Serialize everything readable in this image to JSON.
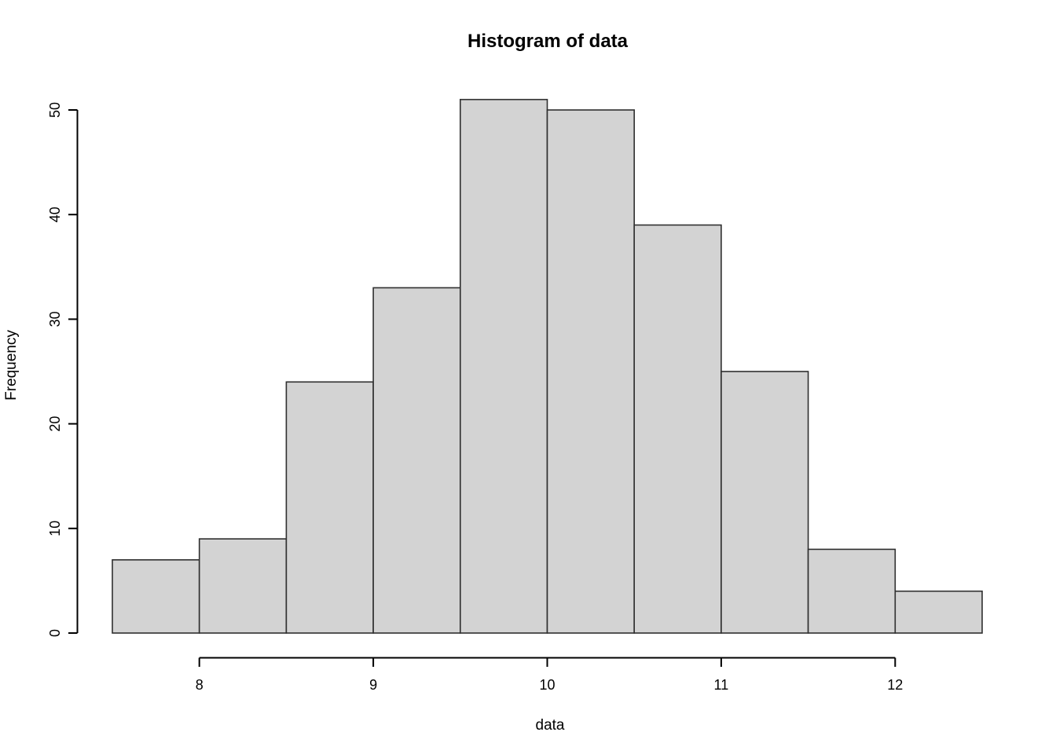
{
  "page": {
    "background": "#ffffff"
  },
  "chart_data": {
    "type": "bar",
    "subtype": "histogram",
    "title": "Histogram of data",
    "xlabel": "data",
    "ylabel": "Frequency",
    "bin_edges": [
      7.5,
      8.0,
      8.5,
      9.0,
      9.5,
      10.0,
      10.5,
      11.0,
      11.5,
      12.0,
      12.5
    ],
    "counts": [
      7,
      9,
      24,
      33,
      51,
      50,
      39,
      25,
      8,
      4
    ],
    "x_ticks": [
      8,
      9,
      10,
      11,
      12
    ],
    "y_ticks": [
      0,
      10,
      20,
      30,
      40,
      50
    ],
    "xlim": [
      7.5,
      12.5
    ],
    "ylim": [
      0,
      51
    ],
    "grid": false,
    "legend": "none",
    "colors": {
      "bar_fill": "#d3d3d3",
      "bar_border": "#2f2f2f",
      "axis": "#000000",
      "tick_text": "#000000",
      "title_text": "#173f63"
    }
  }
}
